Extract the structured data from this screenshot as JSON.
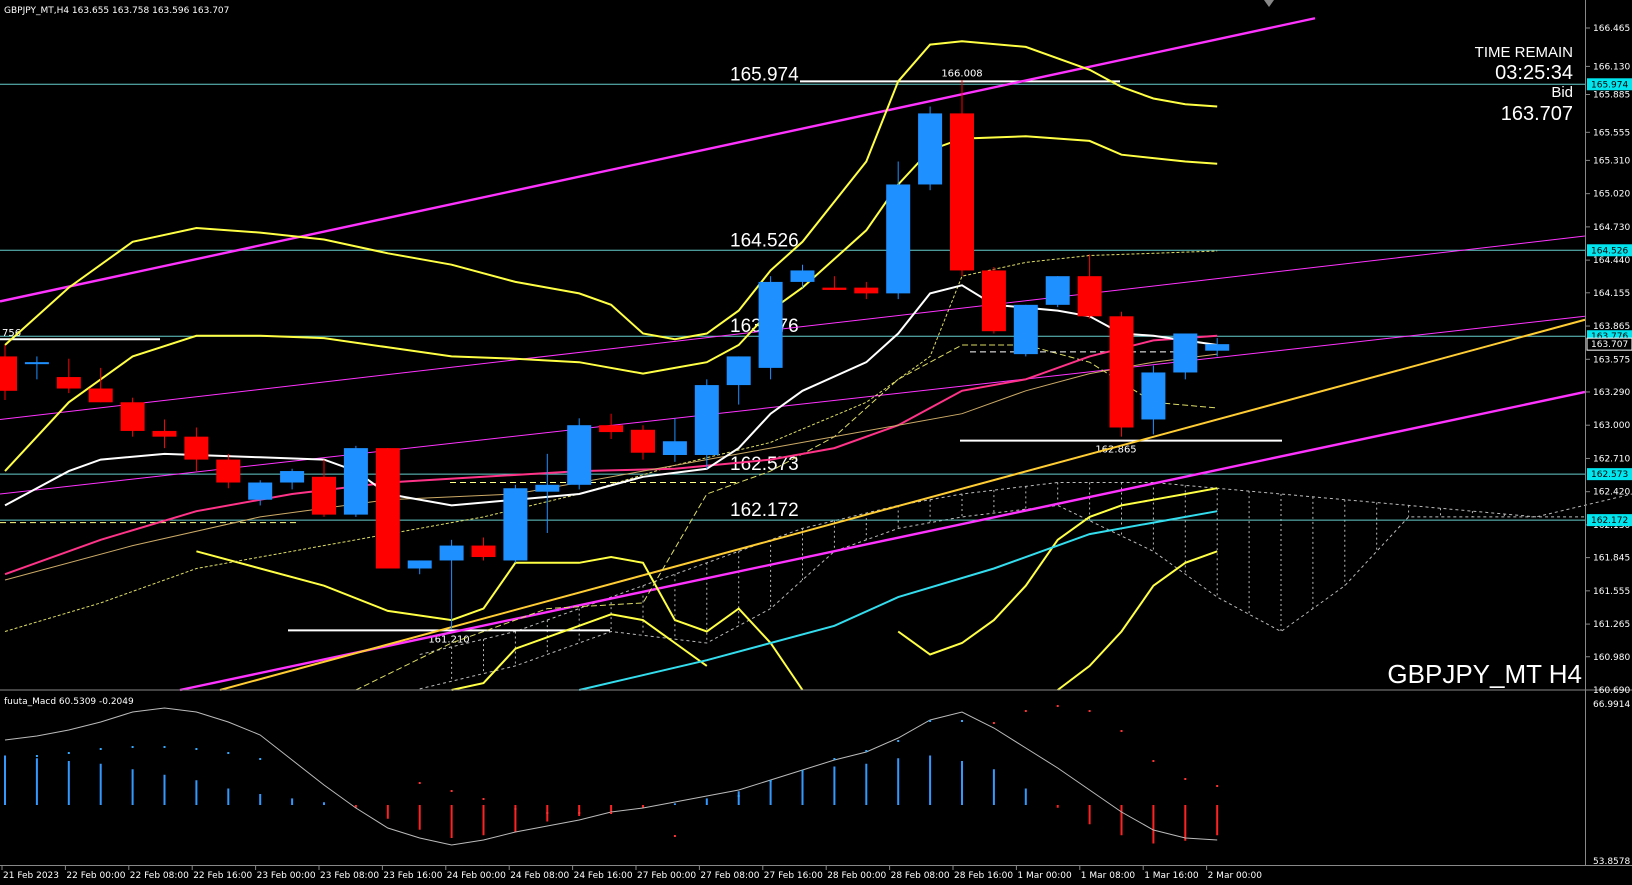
{
  "header": {
    "info": "GBPJPY_MT,H4  163.655 163.758 163.596 163.707"
  },
  "overlay": {
    "time_remain_label": "TIME REMAIN",
    "time_remain": "03:25:34",
    "bid_label": "Bid",
    "bid": "163.707",
    "symbol_period": "GBPJPY_MT H4"
  },
  "colors": {
    "background": "#000000",
    "bull": "#1e90ff",
    "bear": "#ff0000",
    "bollinger": "#ffff44",
    "channel": "#ff33ff",
    "level_line": "#66cccc",
    "price_tag": "#00e5ee",
    "cyan_ma": "#33ddee",
    "macd_line": "#bbbbbb"
  },
  "chart_data": [
    {
      "type": "candlestick",
      "symbol": "GBPJPY_MT",
      "timeframe": "H4",
      "ylim": [
        160.69,
        166.5
      ],
      "y_ticks": [
        "166.465",
        "166.130",
        "165.885",
        "165.555",
        "165.310",
        "165.020",
        "164.730",
        "164.440",
        "164.155",
        "163.865",
        "163.575",
        "163.290",
        "163.000",
        "162.710",
        "162.420",
        "162.130",
        "161.845",
        "161.555",
        "161.265",
        "160.980",
        "160.690"
      ],
      "price_tags": [
        {
          "label": "165.974",
          "value": 165.974
        },
        {
          "label": "164.526",
          "value": 164.526
        },
        {
          "label": "163.776",
          "value": 163.776
        },
        {
          "label": "163.707",
          "value": 163.707
        },
        {
          "label": "162.573",
          "value": 162.573
        },
        {
          "label": "162.172",
          "value": 162.172
        }
      ],
      "horizontal_levels": [
        {
          "label": "165.974",
          "value": 165.974
        },
        {
          "label": "164.526",
          "value": 164.526
        },
        {
          "label": "163.776",
          "value": 163.776
        },
        {
          "label": "162.573",
          "value": 162.573
        },
        {
          "label": "162.172",
          "value": 162.172
        }
      ],
      "extreme_labels": [
        {
          "label": "166.008",
          "value": 166.008
        },
        {
          "label": "161.210",
          "value": 161.21
        },
        {
          "label": "162.865",
          "value": 162.865
        }
      ],
      "left_edge_label": "756",
      "x_ticks": [
        "21 Feb 2023",
        "22 Feb 00:00",
        "22 Feb 08:00",
        "22 Feb 16:00",
        "23 Feb 00:00",
        "23 Feb 08:00",
        "23 Feb 16:00",
        "24 Feb 00:00",
        "24 Feb 08:00",
        "24 Feb 16:00",
        "27 Feb 00:00",
        "27 Feb 08:00",
        "27 Feb 16:00",
        "28 Feb 00:00",
        "28 Feb 08:00",
        "28 Feb 16:00",
        "1 Mar 00:00",
        "1 Mar 08:00",
        "1 Mar 16:00",
        "2 Mar 00:00"
      ],
      "ohlc": [
        [
          163.6,
          163.7,
          163.22,
          163.3
        ],
        [
          163.55,
          163.6,
          163.4,
          163.55
        ],
        [
          163.42,
          163.58,
          163.28,
          163.32
        ],
        [
          163.32,
          163.5,
          163.2,
          163.2
        ],
        [
          163.2,
          163.24,
          162.9,
          162.95
        ],
        [
          162.95,
          163.05,
          162.8,
          162.9
        ],
        [
          162.9,
          162.98,
          162.6,
          162.7
        ],
        [
          162.7,
          162.75,
          162.45,
          162.5
        ],
        [
          162.35,
          162.52,
          162.3,
          162.5
        ],
        [
          162.5,
          162.62,
          162.44,
          162.6
        ],
        [
          162.55,
          162.7,
          162.2,
          162.22
        ],
        [
          162.22,
          162.82,
          162.2,
          162.8
        ],
        [
          162.8,
          162.8,
          161.75,
          161.75
        ],
        [
          161.75,
          161.82,
          161.7,
          161.82
        ],
        [
          161.82,
          162.0,
          161.22,
          161.95
        ],
        [
          161.95,
          162.02,
          161.82,
          161.85
        ],
        [
          161.82,
          162.48,
          161.8,
          162.45
        ],
        [
          162.42,
          162.75,
          162.06,
          162.48
        ],
        [
          162.48,
          163.06,
          162.44,
          163.0
        ],
        [
          163.0,
          163.1,
          162.88,
          162.94
        ],
        [
          162.96,
          163.0,
          162.7,
          162.76
        ],
        [
          162.74,
          163.06,
          162.68,
          162.86
        ],
        [
          162.74,
          163.4,
          162.62,
          163.35
        ],
        [
          163.35,
          163.6,
          163.18,
          163.6
        ],
        [
          163.5,
          164.3,
          163.4,
          164.25
        ],
        [
          164.25,
          164.4,
          164.2,
          164.35
        ],
        [
          164.2,
          164.3,
          164.18,
          164.18
        ],
        [
          164.2,
          164.25,
          164.1,
          164.15
        ],
        [
          164.15,
          165.3,
          164.1,
          165.1
        ],
        [
          165.1,
          165.78,
          165.05,
          165.72
        ],
        [
          165.72,
          166.01,
          164.3,
          164.35
        ],
        [
          164.35,
          164.38,
          163.8,
          163.82
        ],
        [
          163.62,
          164.05,
          163.6,
          164.05
        ],
        [
          164.05,
          164.3,
          164.03,
          164.3
        ],
        [
          164.3,
          164.49,
          163.93,
          163.95
        ],
        [
          163.95,
          163.99,
          162.9,
          162.98
        ],
        [
          163.05,
          163.52,
          162.92,
          163.46
        ],
        [
          163.46,
          163.8,
          163.4,
          163.8
        ],
        [
          163.65,
          163.76,
          163.6,
          163.707
        ]
      ]
    },
    {
      "type": "bar",
      "title": "fuuta_Macd 60.5309   -0.2049",
      "ylim": [
        53.8578,
        66.9914
      ],
      "y_ticks": [
        "66.9914",
        "53.8578"
      ]
    }
  ]
}
